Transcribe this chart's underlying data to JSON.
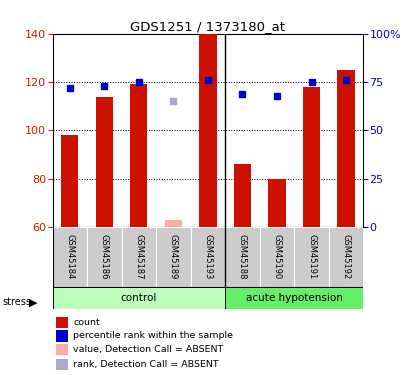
{
  "title": "GDS1251 / 1373180_at",
  "samples": [
    "GSM45184",
    "GSM45186",
    "GSM45187",
    "GSM45189",
    "GSM45193",
    "GSM45188",
    "GSM45190",
    "GSM45191",
    "GSM45192"
  ],
  "bar_values": [
    98,
    114,
    119,
    null,
    140,
    86,
    80,
    118,
    125
  ],
  "bar_values_absent": [
    null,
    null,
    null,
    63,
    null,
    null,
    null,
    null,
    null
  ],
  "rank_values": [
    72,
    73,
    75,
    null,
    76,
    69,
    68,
    75,
    76
  ],
  "rank_values_absent": [
    null,
    null,
    null,
    65,
    null,
    null,
    null,
    null,
    null
  ],
  "bar_color": "#cc1100",
  "bar_color_absent": "#ffaaaa",
  "rank_color": "#0000cc",
  "rank_color_absent": "#aaaacc",
  "ylim_left": [
    60,
    140
  ],
  "ylim_right": [
    0,
    100
  ],
  "yticks_left": [
    60,
    80,
    100,
    120,
    140
  ],
  "yticks_right": [
    0,
    25,
    50,
    75,
    100
  ],
  "ytick_labels_right": [
    "0",
    "25",
    "50",
    "75",
    "100%"
  ],
  "control_color": "#bbffbb",
  "hyp_color": "#66ee66",
  "label_bg_color": "#cccccc",
  "n_control": 5,
  "n_samples": 9
}
